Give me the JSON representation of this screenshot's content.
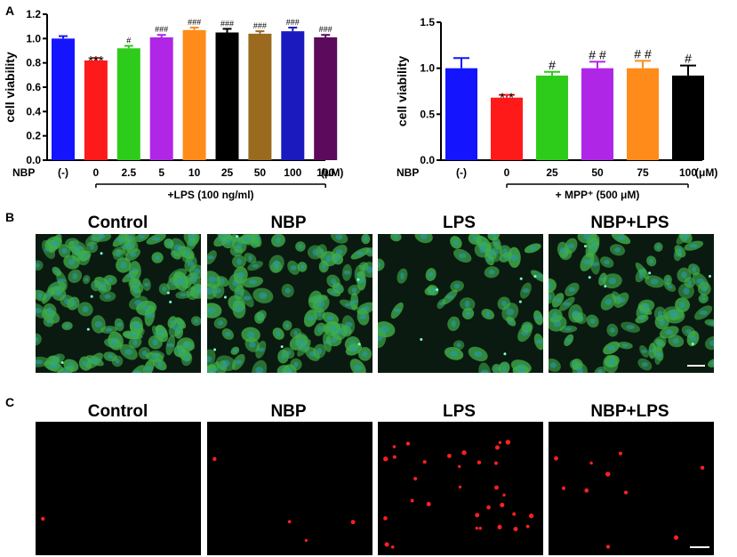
{
  "panel_labels": [
    "A",
    "B",
    "C"
  ],
  "charts": [
    {
      "type": "bar",
      "ylabel": "cell viability",
      "ylim": [
        0,
        1.2
      ],
      "yticks": [
        "0.0",
        "0.2",
        "0.4",
        "0.6",
        "0.8",
        "1.0",
        "1.2"
      ],
      "row_label": "NBP",
      "categories": [
        "(-)",
        "0",
        "2.5",
        "5",
        "10",
        "25",
        "50",
        "100",
        "100"
      ],
      "unit": "(μM)",
      "bracket_label": "+LPS (100 ng/ml)",
      "values": [
        1.0,
        0.82,
        0.92,
        1.01,
        1.07,
        1.05,
        1.04,
        1.06,
        1.01
      ],
      "errors": [
        0.02,
        0.02,
        0.02,
        0.02,
        0.02,
        0.03,
        0.02,
        0.03,
        0.02
      ],
      "annotations": [
        "",
        "***",
        "#",
        "###",
        "###",
        "###",
        "###",
        "###",
        "###"
      ],
      "colors": [
        "#1414ff",
        "#ff1a1a",
        "#2ecc1a",
        "#b026e6",
        "#ff8c1a",
        "#000000",
        "#9a6a1f",
        "#1a1abf",
        "#5c0a5c"
      ]
    },
    {
      "type": "bar",
      "ylabel": "cell viability",
      "ylim": [
        0,
        1.5
      ],
      "yticks": [
        "0.0",
        "0.5",
        "1.0",
        "1.5"
      ],
      "row_label": "NBP",
      "categories": [
        "(-)",
        "0",
        "25",
        "50",
        "75",
        "100"
      ],
      "unit": "(μM)",
      "bracket_label": "+ MPP⁺ (500 μM)",
      "values": [
        1.0,
        0.68,
        0.92,
        1.0,
        1.0,
        0.92
      ],
      "errors": [
        0.11,
        0.03,
        0.04,
        0.07,
        0.08,
        0.11
      ],
      "annotations": [
        "",
        "* *",
        "#",
        "# #",
        "# #",
        "#"
      ],
      "colors": [
        "#1414ff",
        "#ff1a1a",
        "#2ecc1a",
        "#b026e6",
        "#ff8c1a",
        "#000000"
      ]
    }
  ],
  "panel_b": {
    "titles": [
      "Control",
      "NBP",
      "LPS",
      "NBP+LPS"
    ],
    "density": [
      0.9,
      0.75,
      0.35,
      0.6
    ],
    "base_color": "#0a1a10",
    "cell_color": "#3fae4a",
    "nucleus_color": "#2a9ab0"
  },
  "panel_c": {
    "titles": [
      "Control",
      "NBP",
      "LPS",
      "NBP+LPS"
    ],
    "dot_counts": [
      1,
      4,
      32,
      10
    ],
    "base_color": "#000000",
    "dot_color": "#ff2020"
  }
}
